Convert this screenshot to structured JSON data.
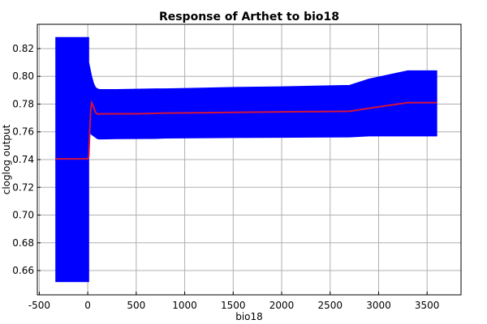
{
  "chart_data": {
    "type": "area",
    "title": "Response of Arthet to bio18",
    "xlabel": "bio18",
    "ylabel": "cloglog output",
    "xlim": [
      -520,
      3850
    ],
    "ylim": [
      0.6425,
      0.8375
    ],
    "xticks": [
      -500,
      0,
      500,
      1000,
      1500,
      2000,
      2500,
      3000,
      3500
    ],
    "xtick_labels": [
      "-500",
      "0",
      "500",
      "1000",
      "1500",
      "2000",
      "2500",
      "3000",
      "3500"
    ],
    "yticks": [
      0.66,
      0.68,
      0.7,
      0.72,
      0.74,
      0.76,
      0.78,
      0.8,
      0.82
    ],
    "ytick_labels": [
      "0.66",
      "0.68",
      "0.70",
      "0.72",
      "0.74",
      "0.76",
      "0.78",
      "0.80",
      "0.82"
    ],
    "grid": true,
    "series": [
      {
        "kind": "band",
        "color": "#0000ff",
        "x": [
          -330,
          10,
          10,
          40,
          60,
          80,
          100,
          120,
          150,
          300,
          700,
          800,
          1500,
          2000,
          2700,
          2900,
          3300,
          3600
        ],
        "upper": [
          0.828,
          0.828,
          0.81,
          0.8,
          0.795,
          0.792,
          0.791,
          0.7905,
          0.7905,
          0.7905,
          0.791,
          0.791,
          0.792,
          0.7925,
          0.7935,
          0.798,
          0.804,
          0.804
        ],
        "lower": [
          0.652,
          0.652,
          0.76,
          0.758,
          0.757,
          0.756,
          0.755,
          0.7548,
          0.7548,
          0.755,
          0.7552,
          0.7555,
          0.7558,
          0.756,
          0.7563,
          0.757,
          0.757,
          0.757
        ]
      },
      {
        "kind": "line",
        "color": "#d2143a",
        "x": [
          -330,
          0,
          10,
          20,
          30,
          40,
          60,
          80,
          100,
          150,
          500,
          800,
          1500,
          2200,
          2700,
          3000,
          3300,
          3600
        ],
        "y": [
          0.7405,
          0.7405,
          0.742,
          0.76,
          0.775,
          0.781,
          0.778,
          0.774,
          0.7728,
          0.773,
          0.773,
          0.7735,
          0.774,
          0.7745,
          0.7748,
          0.778,
          0.781,
          0.781
        ]
      }
    ]
  }
}
